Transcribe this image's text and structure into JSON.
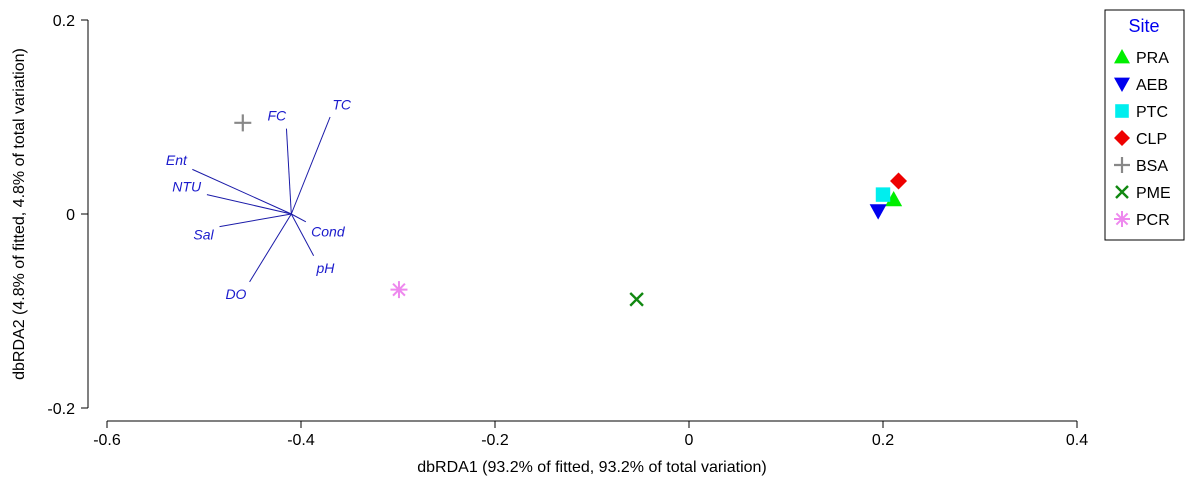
{
  "chart_data": {
    "type": "scatter",
    "xlabel": "dbRDA1 (93.2% of fitted, 93.2% of total variation)",
    "ylabel": "dbRDA2 (4.8% of fitted, 4.8% of total variation)",
    "xlim": [
      -0.62,
      0.41
    ],
    "ylim": [
      -0.2,
      0.2
    ],
    "xticks": [
      -0.6,
      -0.4,
      -0.2,
      0,
      0.2,
      0.4
    ],
    "xtick_labels": [
      "-0.6",
      "-0.4",
      "-0.2",
      "0",
      "0.2",
      "0.4"
    ],
    "yticks": [
      -0.2,
      0,
      0.2
    ],
    "ytick_labels": [
      "-0.2",
      "0",
      "0.2"
    ],
    "grid": false,
    "legend": {
      "title": "Site",
      "placement": "top-right"
    },
    "series": [
      {
        "name": "PRA",
        "marker": "triangle-up",
        "color": "#00ee00",
        "points": [
          {
            "x": 0.211,
            "y": 0.015
          }
        ]
      },
      {
        "name": "AEB",
        "marker": "triangle-down",
        "color": "#0000ee",
        "points": [
          {
            "x": 0.195,
            "y": 0.003
          }
        ]
      },
      {
        "name": "PTC",
        "marker": "square",
        "color": "#00eeee",
        "points": [
          {
            "x": 0.2,
            "y": 0.02
          }
        ]
      },
      {
        "name": "CLP",
        "marker": "diamond",
        "color": "#ee0000",
        "points": [
          {
            "x": 0.216,
            "y": 0.034
          }
        ]
      },
      {
        "name": "BSA",
        "marker": "plus",
        "color": "#888888",
        "points": [
          {
            "x": -0.46,
            "y": 0.094
          }
        ]
      },
      {
        "name": "PME",
        "marker": "x",
        "color": "#118811",
        "points": [
          {
            "x": -0.054,
            "y": -0.088
          }
        ]
      },
      {
        "name": "PCR",
        "marker": "asterisk",
        "color": "#ee88ee",
        "points": [
          {
            "x": -0.299,
            "y": -0.078
          }
        ]
      }
    ],
    "vectors": {
      "origin": {
        "x": -0.41,
        "y": 0.0
      },
      "color": "#1a1aa8",
      "items": [
        {
          "label": "TC",
          "x": -0.37,
          "y": 0.1
        },
        {
          "label": "FC",
          "x": -0.415,
          "y": 0.088
        },
        {
          "label": "Ent",
          "x": -0.512,
          "y": 0.046
        },
        {
          "label": "NTU",
          "x": -0.497,
          "y": 0.02
        },
        {
          "label": "Sal",
          "x": -0.484,
          "y": -0.013
        },
        {
          "label": "DO",
          "x": -0.453,
          "y": -0.07
        },
        {
          "label": "pH",
          "x": -0.387,
          "y": -0.043
        },
        {
          "label": "Cond",
          "x": -0.395,
          "y": -0.008
        }
      ]
    }
  }
}
